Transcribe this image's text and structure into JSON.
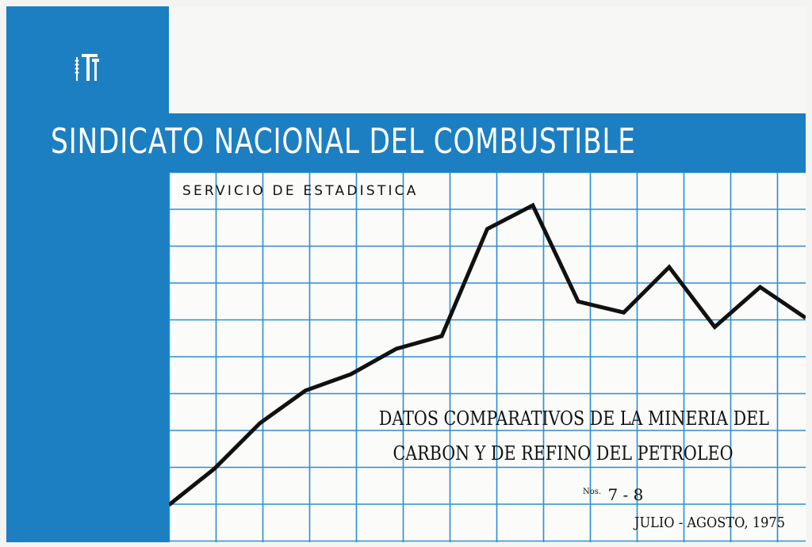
{
  "organization": "SINDICATO NACIONAL DEL COMBUSTIBLE",
  "service": "SERVICIO DE ESTADISTICA",
  "document": {
    "title_line1": "DATOS COMPARATIVOS DE LA MINERIA DEL",
    "title_line2": "CARBON Y DE REFINO DEL PETROLEO",
    "issue_prefix": "Nos.",
    "issue_numbers": "7 - 8",
    "date": "JULIO - AGOSTO, 1975"
  },
  "colors": {
    "brand_blue": "#1c7fc2",
    "grid_blue": "#2b8fd0",
    "ink": "#111111"
  },
  "logo": {
    "icon": "syndicate-emblem-icon"
  },
  "decorative_chart": {
    "type": "line",
    "values": [
      0,
      2,
      4.5,
      6.3,
      7.2,
      8.6,
      9.3,
      15.2,
      16.5,
      11.2,
      10.6,
      13.1,
      9.8,
      12.0,
      10.3
    ]
  }
}
